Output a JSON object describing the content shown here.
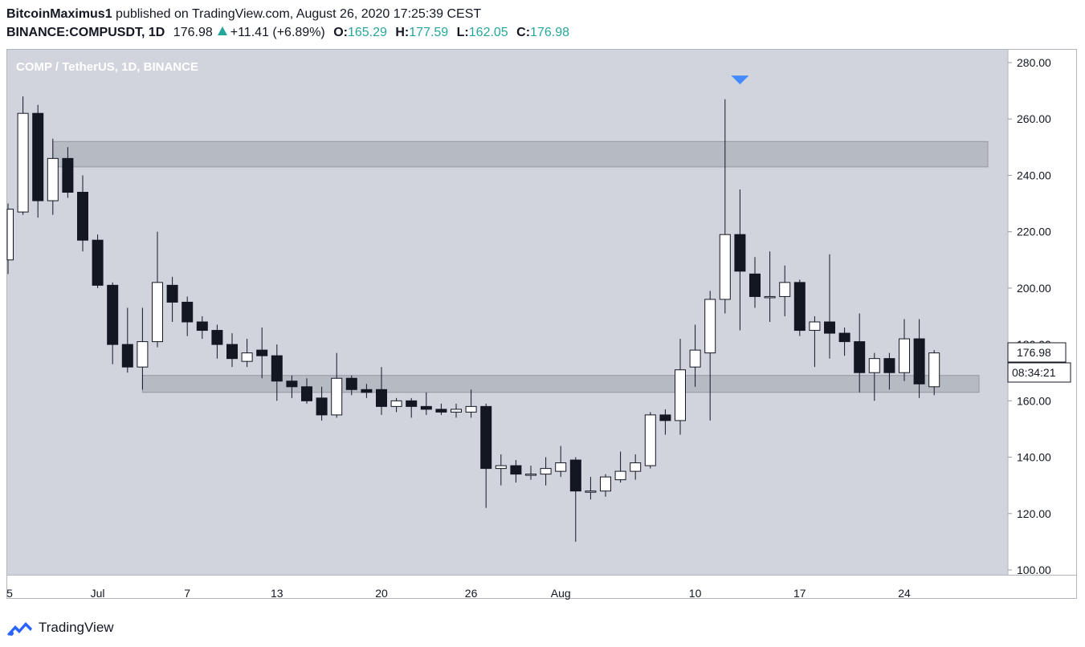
{
  "header": {
    "author": "BitcoinMaximus1",
    "published_text": "published on TradingView.com, August 26, 2020 17:25:39 CEST",
    "symbol": "BINANCE:COMPUSDT, 1D",
    "last": "176.98",
    "change": "+11.41 (+6.89%)",
    "o_label": "O:",
    "o": "165.29",
    "h_label": "H:",
    "h": "177.59",
    "l_label": "L:",
    "l": "162.05",
    "c_label": "C:",
    "c": "176.98"
  },
  "footer": {
    "brand": "TradingView"
  },
  "colors": {
    "background": "#d1d4dc",
    "up_body": "#ffffff",
    "down_body": "#131722",
    "zone": "#b2b5be",
    "marker": "#2962ff"
  },
  "chart_data": {
    "type": "candlestick",
    "title": "COMP / TetherUS, 1D, BINANCE",
    "ylim": [
      100,
      280
    ],
    "y_ticks": [
      "100.00",
      "120.00",
      "140.00",
      "160.00",
      "180.00",
      "200.00",
      "220.00",
      "240.00",
      "260.00",
      "280.00"
    ],
    "x_ticks": [
      {
        "label": "5",
        "day": 0
      },
      {
        "label": "Jul",
        "day": 6
      },
      {
        "label": "7",
        "day": 12
      },
      {
        "label": "13",
        "day": 18
      },
      {
        "label": "20",
        "day": 25
      },
      {
        "label": "26",
        "day": 31
      },
      {
        "label": "Aug",
        "day": 37
      },
      {
        "label": "10",
        "day": 46
      },
      {
        "label": "17",
        "day": 53
      },
      {
        "label": "24",
        "day": 60
      }
    ],
    "price_label": "176.98",
    "countdown_label": "08:34:21",
    "zones": [
      {
        "low": 243,
        "high": 252,
        "from_day": 3,
        "to_day": 67
      },
      {
        "low": 163,
        "high": 169,
        "from_day": 9,
        "to_day": 65
      }
    ],
    "marker": {
      "day": 49,
      "price": 274,
      "shape": "triangle-down"
    },
    "candles": [
      {
        "day": 0,
        "o": 210,
        "h": 230,
        "l": 205,
        "c": 228
      },
      {
        "day": 1,
        "o": 227,
        "h": 268,
        "l": 226,
        "c": 262
      },
      {
        "day": 2,
        "o": 262,
        "h": 265,
        "l": 225,
        "c": 231
      },
      {
        "day": 3,
        "o": 231,
        "h": 253,
        "l": 226,
        "c": 246
      },
      {
        "day": 4,
        "o": 246,
        "h": 250,
        "l": 232,
        "c": 234
      },
      {
        "day": 5,
        "o": 234,
        "h": 240,
        "l": 213,
        "c": 217
      },
      {
        "day": 6,
        "o": 217,
        "h": 219,
        "l": 200,
        "c": 201
      },
      {
        "day": 7,
        "o": 201,
        "h": 202,
        "l": 173,
        "c": 180
      },
      {
        "day": 8,
        "o": 180,
        "h": 193,
        "l": 170,
        "c": 172
      },
      {
        "day": 9,
        "o": 172,
        "h": 193,
        "l": 164,
        "c": 181
      },
      {
        "day": 10,
        "o": 181,
        "h": 220,
        "l": 179,
        "c": 202
      },
      {
        "day": 11,
        "o": 201,
        "h": 204,
        "l": 188,
        "c": 195
      },
      {
        "day": 12,
        "o": 195,
        "h": 197,
        "l": 183,
        "c": 188
      },
      {
        "day": 13,
        "o": 188,
        "h": 190,
        "l": 182,
        "c": 185
      },
      {
        "day": 14,
        "o": 185,
        "h": 187,
        "l": 175,
        "c": 180
      },
      {
        "day": 15,
        "o": 180,
        "h": 184,
        "l": 172,
        "c": 175
      },
      {
        "day": 16,
        "o": 174,
        "h": 182,
        "l": 172,
        "c": 177
      },
      {
        "day": 17,
        "o": 178,
        "h": 186,
        "l": 168,
        "c": 176
      },
      {
        "day": 18,
        "o": 176,
        "h": 180,
        "l": 160,
        "c": 167
      },
      {
        "day": 19,
        "o": 167,
        "h": 169,
        "l": 161,
        "c": 165
      },
      {
        "day": 20,
        "o": 165,
        "h": 168,
        "l": 159,
        "c": 160
      },
      {
        "day": 21,
        "o": 161,
        "h": 165,
        "l": 153,
        "c": 155
      },
      {
        "day": 22,
        "o": 155,
        "h": 177,
        "l": 154,
        "c": 168
      },
      {
        "day": 23,
        "o": 168,
        "h": 169,
        "l": 162,
        "c": 164
      },
      {
        "day": 24,
        "o": 164,
        "h": 166,
        "l": 161,
        "c": 163
      },
      {
        "day": 25,
        "o": 164,
        "h": 172,
        "l": 155,
        "c": 158
      },
      {
        "day": 26,
        "o": 158,
        "h": 161,
        "l": 156,
        "c": 160
      },
      {
        "day": 27,
        "o": 160,
        "h": 161,
        "l": 154,
        "c": 158
      },
      {
        "day": 28,
        "o": 158,
        "h": 163,
        "l": 155,
        "c": 157
      },
      {
        "day": 29,
        "o": 157,
        "h": 159,
        "l": 155,
        "c": 156
      },
      {
        "day": 30,
        "o": 156,
        "h": 159,
        "l": 154,
        "c": 157
      },
      {
        "day": 31,
        "o": 156,
        "h": 164,
        "l": 154,
        "c": 158
      },
      {
        "day": 32,
        "o": 158,
        "h": 159,
        "l": 122,
        "c": 136
      },
      {
        "day": 33,
        "o": 136,
        "h": 141,
        "l": 130,
        "c": 137
      },
      {
        "day": 34,
        "o": 137,
        "h": 139,
        "l": 131,
        "c": 134
      },
      {
        "day": 35,
        "o": 134,
        "h": 137,
        "l": 132,
        "c": 134
      },
      {
        "day": 36,
        "o": 134,
        "h": 140,
        "l": 130,
        "c": 136
      },
      {
        "day": 37,
        "o": 135,
        "h": 144,
        "l": 133,
        "c": 138
      },
      {
        "day": 38,
        "o": 139,
        "h": 140,
        "l": 110,
        "c": 128
      },
      {
        "day": 39,
        "o": 128,
        "h": 133,
        "l": 125,
        "c": 128
      },
      {
        "day": 40,
        "o": 128,
        "h": 134,
        "l": 126,
        "c": 133
      },
      {
        "day": 41,
        "o": 132,
        "h": 142,
        "l": 131,
        "c": 135
      },
      {
        "day": 42,
        "o": 135,
        "h": 141,
        "l": 132,
        "c": 138
      },
      {
        "day": 43,
        "o": 137,
        "h": 156,
        "l": 136,
        "c": 155
      },
      {
        "day": 44,
        "o": 155,
        "h": 157,
        "l": 148,
        "c": 153
      },
      {
        "day": 45,
        "o": 153,
        "h": 182,
        "l": 148,
        "c": 171
      },
      {
        "day": 46,
        "o": 172,
        "h": 187,
        "l": 165,
        "c": 178
      },
      {
        "day": 47,
        "o": 177,
        "h": 199,
        "l": 153,
        "c": 196
      },
      {
        "day": 48,
        "o": 196,
        "h": 267,
        "l": 191,
        "c": 219
      },
      {
        "day": 49,
        "o": 219,
        "h": 235,
        "l": 185,
        "c": 206
      },
      {
        "day": 50,
        "o": 205,
        "h": 211,
        "l": 193,
        "c": 197
      },
      {
        "day": 51,
        "o": 197,
        "h": 213,
        "l": 188,
        "c": 197
      },
      {
        "day": 52,
        "o": 197,
        "h": 208,
        "l": 190,
        "c": 202
      },
      {
        "day": 53,
        "o": 202,
        "h": 203,
        "l": 183,
        "c": 185
      },
      {
        "day": 54,
        "o": 185,
        "h": 190,
        "l": 172,
        "c": 188
      },
      {
        "day": 55,
        "o": 188,
        "h": 212,
        "l": 175,
        "c": 184
      },
      {
        "day": 56,
        "o": 184,
        "h": 186,
        "l": 176,
        "c": 181
      },
      {
        "day": 57,
        "o": 181,
        "h": 191,
        "l": 163,
        "c": 170
      },
      {
        "day": 58,
        "o": 170,
        "h": 177,
        "l": 160,
        "c": 175
      },
      {
        "day": 59,
        "o": 175,
        "h": 177,
        "l": 164,
        "c": 170
      },
      {
        "day": 60,
        "o": 170,
        "h": 189,
        "l": 167,
        "c": 182
      },
      {
        "day": 61,
        "o": 182,
        "h": 189,
        "l": 161,
        "c": 166
      },
      {
        "day": 62,
        "o": 165,
        "h": 178,
        "l": 162,
        "c": 177
      }
    ]
  }
}
